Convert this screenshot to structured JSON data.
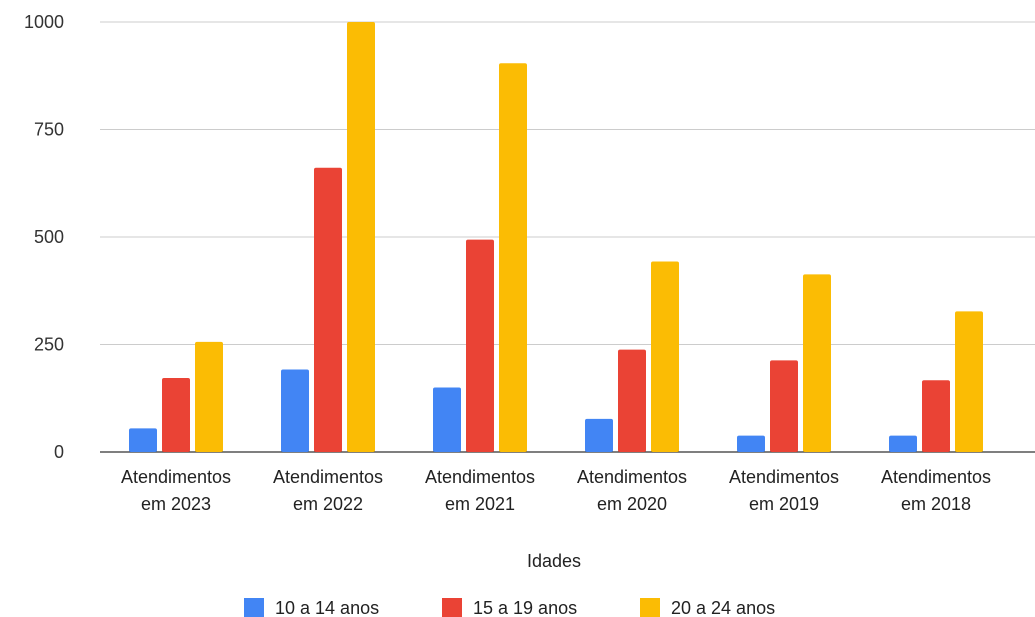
{
  "chart_data": {
    "type": "bar",
    "categories": [
      [
        "Atendimentos",
        "em 2023"
      ],
      [
        "Atendimentos",
        "em 2022"
      ],
      [
        "Atendimentos",
        "em 2021"
      ],
      [
        "Atendimentos",
        "em 2020"
      ],
      [
        "Atendimentos",
        "em 2019"
      ],
      [
        "Atendimentos",
        "em 2018"
      ]
    ],
    "series": [
      {
        "name": "10 a 14 anos",
        "color": "#4285f4",
        "values": [
          55,
          192,
          150,
          77,
          38,
          38
        ]
      },
      {
        "name": "15 a 19 anos",
        "color": "#ea4335",
        "values": [
          172,
          661,
          494,
          238,
          213,
          167
        ]
      },
      {
        "name": "20 a 24 anos",
        "color": "#fbbc04",
        "values": [
          256,
          1000,
          904,
          443,
          413,
          327
        ]
      }
    ],
    "xlabel": "Idades",
    "ylabel": "",
    "ylim": [
      0,
      1000
    ],
    "yticks": [
      0,
      250,
      500,
      750,
      1000
    ],
    "grid": true,
    "legend_position": "bottom"
  }
}
